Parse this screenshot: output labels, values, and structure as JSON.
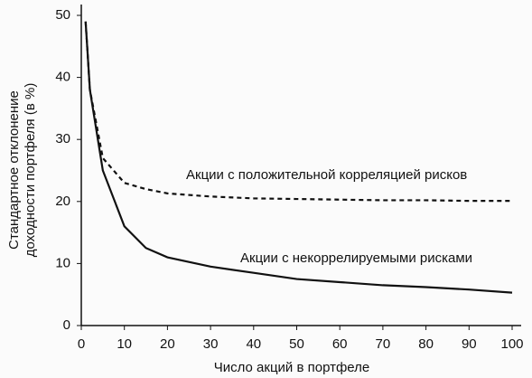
{
  "chart_data": {
    "type": "line",
    "xlabel": "Число акций в портфеле",
    "ylabel": [
      "Стандартное отклонение",
      "доходности портфеля (в %)"
    ],
    "x": [
      1,
      2,
      5,
      10,
      15,
      20,
      30,
      40,
      50,
      60,
      70,
      80,
      90,
      100
    ],
    "series": [
      {
        "name": "Акции с положительной корреляцией рисков",
        "color": "#111111",
        "style": "dashed",
        "values": [
          49,
          38,
          27,
          23,
          22,
          21.3,
          20.8,
          20.5,
          20.4,
          20.3,
          20.2,
          20.2,
          20.1,
          20.1
        ]
      },
      {
        "name": "Акции с некоррелируемыми рисками",
        "color": "#111111",
        "style": "solid",
        "values": [
          49,
          38,
          25,
          16,
          12.5,
          11,
          9.5,
          8.5,
          7.5,
          7,
          6.5,
          6.2,
          5.8,
          5.3
        ]
      }
    ],
    "xlim": [
      0,
      100
    ],
    "xticks": [
      0,
      10,
      20,
      30,
      40,
      50,
      60,
      70,
      80,
      90,
      100
    ],
    "ylim": [
      0,
      50
    ],
    "yticks": [
      0,
      10,
      20,
      30,
      40,
      50
    ],
    "grid": false
  }
}
